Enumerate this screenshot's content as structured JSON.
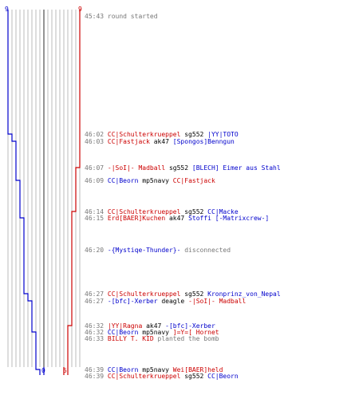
{
  "header": {
    "left_count": "9",
    "right_count": "9",
    "left_color": "#0000cc",
    "right_color": "#cc0000"
  },
  "footer": {
    "left_count": "0",
    "right_count": "5"
  },
  "chart_data": {
    "type": "line",
    "title": "",
    "x": [
      "45:43",
      "46:02",
      "46:03",
      "46:07",
      "46:09",
      "46:14",
      "46:15",
      "46:20",
      "46:27",
      "46:27",
      "46:32",
      "46:32",
      "46:33",
      "46:39",
      "46:39"
    ],
    "series": [
      {
        "color": "#0000cc",
        "values": [
          9,
          8,
          7,
          7,
          6,
          6,
          5,
          5,
          4,
          3,
          3,
          2,
          2,
          1,
          0
        ]
      },
      {
        "color": "#cc0000",
        "values": [
          9,
          9,
          9,
          8,
          8,
          7,
          7,
          7,
          7,
          7,
          6,
          6,
          6,
          6,
          5
        ]
      }
    ],
    "ylim": [
      0,
      9
    ]
  },
  "events": [
    {
      "time": "45:43",
      "parts": [
        {
          "c": "t",
          "text": "round started"
        }
      ]
    },
    {
      "time": "46:02",
      "parts": [
        {
          "c": "r",
          "text": "CC|Schulterkrueppel"
        },
        {
          "c": "w",
          "text": " sg552 "
        },
        {
          "c": "b",
          "text": "|YY|TOTO"
        }
      ]
    },
    {
      "time": "46:03",
      "parts": [
        {
          "c": "r",
          "text": "CC|Fastjack"
        },
        {
          "c": "w",
          "text": " ak47 "
        },
        {
          "c": "b",
          "text": "[Spongos]Benngun"
        }
      ]
    },
    {
      "time": "46:07",
      "parts": [
        {
          "c": "r",
          "text": "-|SoI|- Madball"
        },
        {
          "c": "w",
          "text": " sg552 "
        },
        {
          "c": "b",
          "text": "[BLECH] Eimer aus Stahl"
        }
      ]
    },
    {
      "time": "46:09",
      "parts": [
        {
          "c": "b",
          "text": "CC|Beorn"
        },
        {
          "c": "w",
          "text": " mp5navy "
        },
        {
          "c": "r",
          "text": "CC|Fastjack"
        }
      ]
    },
    {
      "time": "46:14",
      "parts": [
        {
          "c": "r",
          "text": "CC|Schulterkrueppel"
        },
        {
          "c": "w",
          "text": " sg552 "
        },
        {
          "c": "b",
          "text": "CC|Macke"
        }
      ]
    },
    {
      "time": "46:15",
      "parts": [
        {
          "c": "r",
          "text": "Erd[BAER]Kuchen"
        },
        {
          "c": "w",
          "text": " ak47 "
        },
        {
          "c": "b",
          "text": "Stoffi [-Matrixcrew-]"
        }
      ]
    },
    {
      "time": "46:20",
      "parts": [
        {
          "c": "b",
          "text": "-{Mystiqe-Thunder}-"
        },
        {
          "c": "t",
          "text": " disconnected"
        }
      ]
    },
    {
      "time": "46:27",
      "parts": [
        {
          "c": "r",
          "text": "CC|Schulterkrueppel"
        },
        {
          "c": "w",
          "text": " sg552 "
        },
        {
          "c": "b",
          "text": "Kronprinz_von_Nepal"
        }
      ]
    },
    {
      "time": "46:27",
      "parts": [
        {
          "c": "b",
          "text": "-[bfc]-Xerber"
        },
        {
          "c": "w",
          "text": " deagle "
        },
        {
          "c": "r",
          "text": "-|SoI|- Madball"
        }
      ]
    },
    {
      "time": "46:32",
      "parts": [
        {
          "c": "r",
          "text": "|YY|Ragna"
        },
        {
          "c": "w",
          "text": " ak47 "
        },
        {
          "c": "b",
          "text": "-[bfc]-Xerber"
        }
      ]
    },
    {
      "time": "46:32",
      "parts": [
        {
          "c": "b",
          "text": "CC|Beorn"
        },
        {
          "c": "w",
          "text": " mp5navy "
        },
        {
          "c": "r",
          "text": "]=Y=[ Hornet"
        }
      ]
    },
    {
      "time": "46:33",
      "parts": [
        {
          "c": "r",
          "text": "BILLY T. KID"
        },
        {
          "c": "t",
          "text": " planted the bomb"
        }
      ]
    },
    {
      "time": "46:39",
      "parts": [
        {
          "c": "b",
          "text": "CC|Beorn"
        },
        {
          "c": "w",
          "text": " mp5navy "
        },
        {
          "c": "r",
          "text": "Wei[BAER]held"
        }
      ]
    },
    {
      "time": "46:39",
      "parts": [
        {
          "c": "r",
          "text": "CC|Schulterkrueppel"
        },
        {
          "c": "w",
          "text": " sg552 "
        },
        {
          "c": "b",
          "text": "CC|Beorn"
        }
      ]
    }
  ]
}
